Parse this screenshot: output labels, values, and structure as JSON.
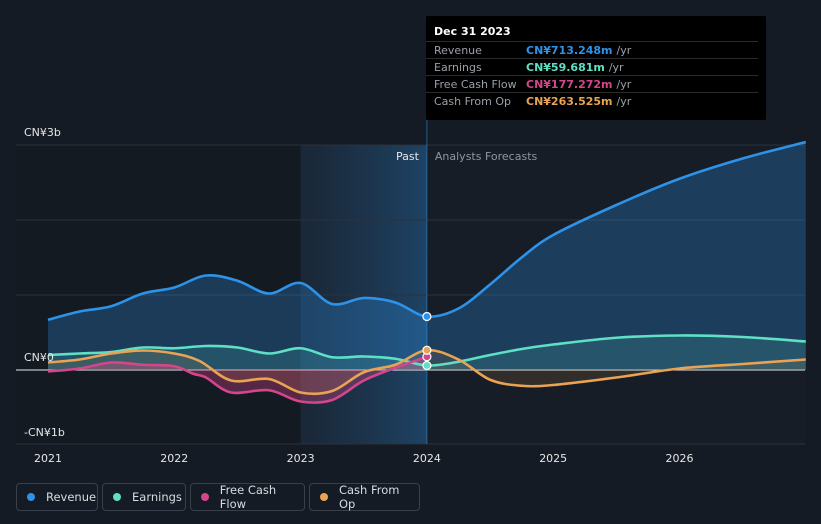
{
  "chart_data": {
    "type": "line",
    "x_ticks": [
      2021,
      2022,
      2023,
      2024,
      2025,
      2026
    ],
    "x_tick_labels": [
      "2021",
      "2022",
      "2023",
      "2024",
      "2025",
      "2026"
    ],
    "xlim": [
      2020.99,
      2027.0
    ],
    "ylim": [
      -1.0,
      3.0
    ],
    "y_tick_labels": [
      {
        "value": 3,
        "label": "CN¥3b"
      },
      {
        "value": 0,
        "label": "CN¥0"
      },
      {
        "value": -1,
        "label": "-CN¥1b"
      }
    ],
    "past_label": "Past",
    "forecast_label": "Analysts Forecasts",
    "divider_x": 2024.0,
    "shaded_past_start": 2023.0,
    "series": [
      {
        "name": "Revenue",
        "color": "#2e93e8",
        "points": [
          [
            2021.0,
            0.67
          ],
          [
            2021.25,
            0.78
          ],
          [
            2021.5,
            0.85
          ],
          [
            2021.75,
            1.02
          ],
          [
            2022.0,
            1.1
          ],
          [
            2022.25,
            1.26
          ],
          [
            2022.5,
            1.19
          ],
          [
            2022.75,
            1.02
          ],
          [
            2023.0,
            1.16
          ],
          [
            2023.25,
            0.88
          ],
          [
            2023.5,
            0.96
          ],
          [
            2023.75,
            0.9
          ],
          [
            2024.0,
            0.713
          ],
          [
            2024.25,
            0.82
          ],
          [
            2024.5,
            1.14
          ],
          [
            2024.75,
            1.5
          ],
          [
            2025.0,
            1.8
          ],
          [
            2025.5,
            2.2
          ],
          [
            2026.0,
            2.55
          ],
          [
            2026.5,
            2.82
          ],
          [
            2027.0,
            3.04
          ]
        ]
      },
      {
        "name": "Earnings",
        "color": "#5fe0c4",
        "points": [
          [
            2021.0,
            0.2
          ],
          [
            2021.25,
            0.22
          ],
          [
            2021.5,
            0.24
          ],
          [
            2021.75,
            0.3
          ],
          [
            2022.0,
            0.29
          ],
          [
            2022.25,
            0.32
          ],
          [
            2022.5,
            0.3
          ],
          [
            2022.75,
            0.22
          ],
          [
            2023.0,
            0.29
          ],
          [
            2023.25,
            0.17
          ],
          [
            2023.5,
            0.18
          ],
          [
            2023.75,
            0.15
          ],
          [
            2024.0,
            0.0597
          ],
          [
            2024.25,
            0.11
          ],
          [
            2024.5,
            0.2
          ],
          [
            2024.75,
            0.28
          ],
          [
            2025.0,
            0.34
          ],
          [
            2025.5,
            0.43
          ],
          [
            2026.0,
            0.46
          ],
          [
            2026.5,
            0.44
          ],
          [
            2027.0,
            0.38
          ]
        ]
      },
      {
        "name": "Free Cash Flow",
        "color": "#d4468a",
        "points": [
          [
            2021.0,
            -0.02
          ],
          [
            2021.25,
            0.02
          ],
          [
            2021.5,
            0.1
          ],
          [
            2021.75,
            0.07
          ],
          [
            2022.0,
            0.05
          ],
          [
            2022.15,
            -0.05
          ],
          [
            2022.25,
            -0.1
          ],
          [
            2022.45,
            -0.3
          ],
          [
            2022.75,
            -0.27
          ],
          [
            2023.0,
            -0.42
          ],
          [
            2023.25,
            -0.4
          ],
          [
            2023.5,
            -0.14
          ],
          [
            2023.75,
            0.03
          ],
          [
            2024.0,
            0.177
          ]
        ]
      },
      {
        "name": "Cash From Op",
        "color": "#e8a353",
        "points": [
          [
            2021.0,
            0.1
          ],
          [
            2021.25,
            0.14
          ],
          [
            2021.5,
            0.22
          ],
          [
            2021.75,
            0.26
          ],
          [
            2022.0,
            0.22
          ],
          [
            2022.2,
            0.12
          ],
          [
            2022.45,
            -0.14
          ],
          [
            2022.75,
            -0.12
          ],
          [
            2023.0,
            -0.3
          ],
          [
            2023.25,
            -0.28
          ],
          [
            2023.5,
            -0.03
          ],
          [
            2023.75,
            0.07
          ],
          [
            2024.0,
            0.2635
          ],
          [
            2024.25,
            0.14
          ],
          [
            2024.5,
            -0.13
          ],
          [
            2024.75,
            -0.21
          ],
          [
            2025.0,
            -0.2
          ],
          [
            2025.5,
            -0.1
          ],
          [
            2026.0,
            0.02
          ],
          [
            2026.5,
            0.08
          ],
          [
            2027.0,
            0.14
          ]
        ]
      }
    ]
  },
  "tooltip": {
    "date": "Dec 31 2023",
    "rows": [
      {
        "label": "Revenue",
        "value": "CN¥713.248m",
        "unit": "/yr",
        "color": "#2e93e8"
      },
      {
        "label": "Earnings",
        "value": "CN¥59.681m",
        "unit": "/yr",
        "color": "#5fe0c4"
      },
      {
        "label": "Free Cash Flow",
        "value": "CN¥177.272m",
        "unit": "/yr",
        "color": "#d4468a"
      },
      {
        "label": "Cash From Op",
        "value": "CN¥263.525m",
        "unit": "/yr",
        "color": "#e8a353"
      }
    ]
  },
  "legend": [
    {
      "label": "Revenue",
      "color": "#2e93e8"
    },
    {
      "label": "Earnings",
      "color": "#5fe0c4"
    },
    {
      "label": "Free Cash Flow",
      "color": "#d4468a"
    },
    {
      "label": "Cash From Op",
      "color": "#e8a353"
    }
  ]
}
